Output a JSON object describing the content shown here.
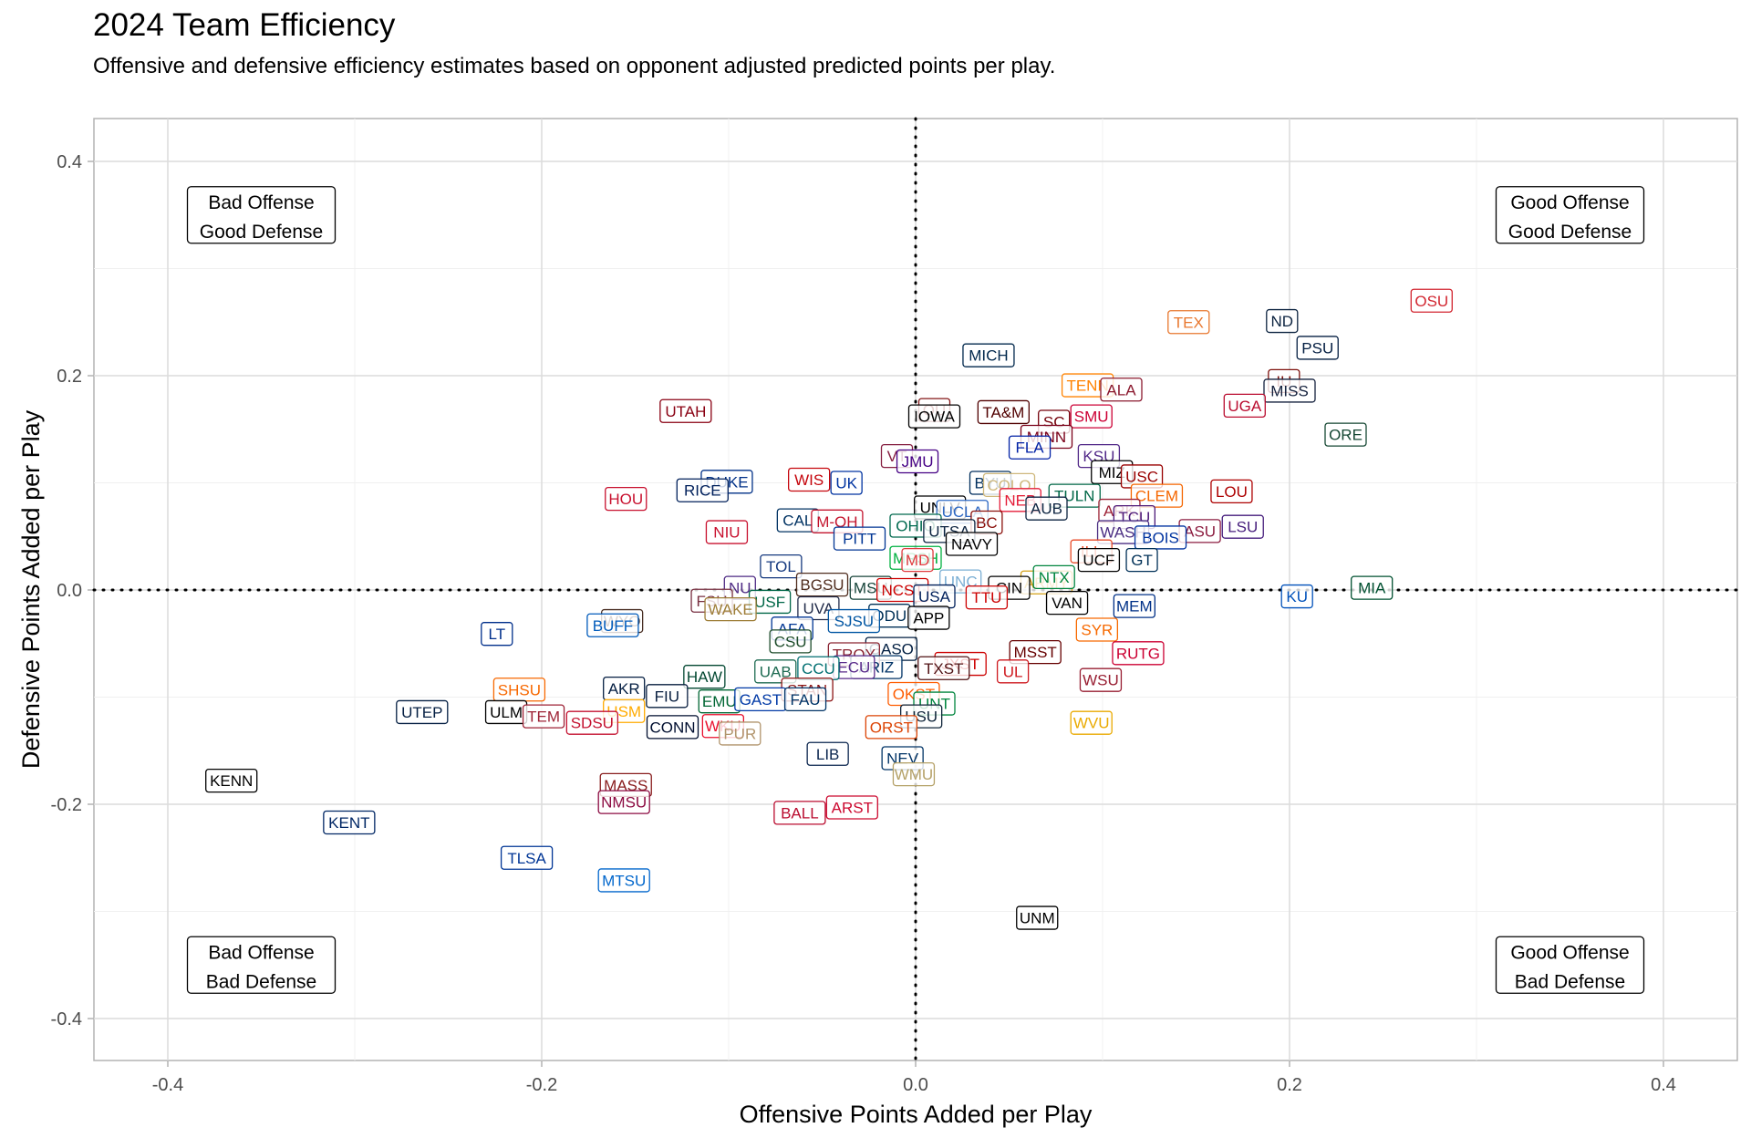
{
  "chart_data": {
    "type": "scatter",
    "title": "2024 Team Efficiency",
    "subtitle": "Offensive and defensive efficiency estimates based on opponent adjusted predicted points per play.",
    "xlabel": "Offensive Points Added per Play",
    "ylabel": "Defensive Points Added per Play",
    "xlim": [
      -0.44,
      0.44
    ],
    "ylim": [
      -0.44,
      0.44
    ],
    "x_ticks": [
      -0.4,
      -0.2,
      0.0,
      0.2,
      0.4
    ],
    "x_tick_labels": [
      "-0.4",
      "-0.2",
      "0.0",
      "0.2",
      "0.4"
    ],
    "y_ticks": [
      -0.4,
      -0.2,
      0.0,
      0.2,
      0.4
    ],
    "y_tick_labels": [
      "-0.4",
      "-0.2",
      "0.0",
      "0.2",
      "0.4"
    ],
    "grid": true,
    "reference_lines": {
      "x": 0.0,
      "y": 0.0,
      "style": "dotted"
    },
    "quadrant_labels": [
      {
        "lines": [
          "Bad Offense",
          "Good Defense"
        ],
        "x": -0.35,
        "y": 0.35
      },
      {
        "lines": [
          "Good Offense",
          "Good Defense"
        ],
        "x": 0.35,
        "y": 0.35
      },
      {
        "lines": [
          "Bad Offense",
          "Bad Defense"
        ],
        "x": -0.35,
        "y": -0.35
      },
      {
        "lines": [
          "Good Offense",
          "Bad Defense"
        ],
        "x": 0.35,
        "y": -0.35
      }
    ],
    "points": [
      {
        "team": "OSU",
        "x": 0.276,
        "y": 0.27,
        "color": "#d22630"
      },
      {
        "team": "TEX",
        "x": 0.146,
        "y": 0.25,
        "color": "#e8772e"
      },
      {
        "team": "ND",
        "x": 0.196,
        "y": 0.251,
        "color": "#0c2340"
      },
      {
        "team": "PSU",
        "x": 0.215,
        "y": 0.226,
        "color": "#041e42"
      },
      {
        "team": "MICH",
        "x": 0.039,
        "y": 0.219,
        "color": "#00274c"
      },
      {
        "team": "TENN",
        "x": 0.092,
        "y": 0.191,
        "color": "#ff8200"
      },
      {
        "team": "ALA",
        "x": 0.11,
        "y": 0.187,
        "color": "#8b1a2f"
      },
      {
        "team": "IU",
        "x": 0.197,
        "y": 0.195,
        "color": "#7d110c"
      },
      {
        "team": "MISS",
        "x": 0.2,
        "y": 0.186,
        "color": "#14213d"
      },
      {
        "team": "UGA",
        "x": 0.176,
        "y": 0.172,
        "color": "#ba0c2f"
      },
      {
        "team": "UTAH",
        "x": -0.123,
        "y": 0.167,
        "color": "#890012"
      },
      {
        "team": "OU",
        "x": 0.01,
        "y": 0.168,
        "color": "#841617"
      },
      {
        "team": "IOWA",
        "x": 0.01,
        "y": 0.162,
        "color": "#000000"
      },
      {
        "team": "TA&M",
        "x": 0.047,
        "y": 0.166,
        "color": "#500000"
      },
      {
        "team": "SMU",
        "x": 0.094,
        "y": 0.162,
        "color": "#cc0035"
      },
      {
        "team": "SC",
        "x": 0.074,
        "y": 0.157,
        "color": "#73000a"
      },
      {
        "team": "MINN",
        "x": 0.07,
        "y": 0.143,
        "color": "#7a0019"
      },
      {
        "team": "ORE",
        "x": 0.23,
        "y": 0.145,
        "color": "#154733"
      },
      {
        "team": "FLA",
        "x": 0.061,
        "y": 0.133,
        "color": "#0021a5"
      },
      {
        "team": "KSU",
        "x": 0.098,
        "y": 0.125,
        "color": "#512888"
      },
      {
        "team": "VT",
        "x": -0.01,
        "y": 0.125,
        "color": "#861f41"
      },
      {
        "team": "JMU",
        "x": 0.001,
        "y": 0.12,
        "color": "#450084"
      },
      {
        "team": "MIZ",
        "x": 0.105,
        "y": 0.11,
        "color": "#000000"
      },
      {
        "team": "USC",
        "x": 0.121,
        "y": 0.106,
        "color": "#990000"
      },
      {
        "team": "DUKE",
        "x": -0.101,
        "y": 0.101,
        "color": "#003087"
      },
      {
        "team": "WIS",
        "x": -0.057,
        "y": 0.103,
        "color": "#c5050c"
      },
      {
        "team": "UK",
        "x": -0.037,
        "y": 0.1,
        "color": "#0033a0"
      },
      {
        "team": "BYU",
        "x": 0.04,
        "y": 0.1,
        "color": "#002e5d"
      },
      {
        "team": "COLO",
        "x": 0.05,
        "y": 0.098,
        "color": "#cfb87c"
      },
      {
        "team": "RICE",
        "x": -0.114,
        "y": 0.093,
        "color": "#00205b"
      },
      {
        "team": "LOU",
        "x": 0.169,
        "y": 0.092,
        "color": "#ad0000"
      },
      {
        "team": "TULN",
        "x": 0.085,
        "y": 0.088,
        "color": "#006747"
      },
      {
        "team": "CLEM",
        "x": 0.129,
        "y": 0.088,
        "color": "#f56600"
      },
      {
        "team": "NEB",
        "x": 0.056,
        "y": 0.084,
        "color": "#e41c38"
      },
      {
        "team": "HOU",
        "x": -0.155,
        "y": 0.085,
        "color": "#c8102e"
      },
      {
        "team": "AUB",
        "x": 0.07,
        "y": 0.076,
        "color": "#0c2340"
      },
      {
        "team": "UNLV",
        "x": 0.013,
        "y": 0.077,
        "color": "#000000"
      },
      {
        "team": "UCLA",
        "x": 0.025,
        "y": 0.073,
        "color": "#2d68c4"
      },
      {
        "team": "ARK",
        "x": 0.109,
        "y": 0.074,
        "color": "#9d2235"
      },
      {
        "team": "TCU",
        "x": 0.117,
        "y": 0.068,
        "color": "#4d1979"
      },
      {
        "team": "CAL",
        "x": -0.063,
        "y": 0.065,
        "color": "#003262"
      },
      {
        "team": "M-OH",
        "x": -0.042,
        "y": 0.064,
        "color": "#c3142d"
      },
      {
        "team": "BC",
        "x": 0.038,
        "y": 0.063,
        "color": "#8a100b"
      },
      {
        "team": "OHIO",
        "x": 0.0,
        "y": 0.06,
        "color": "#00694e"
      },
      {
        "team": "LSU",
        "x": 0.175,
        "y": 0.059,
        "color": "#461d7c"
      },
      {
        "team": "ASU",
        "x": 0.152,
        "y": 0.055,
        "color": "#8c1d40"
      },
      {
        "team": "UTSA",
        "x": 0.018,
        "y": 0.055,
        "color": "#0c2340"
      },
      {
        "team": "NIU",
        "x": -0.101,
        "y": 0.054,
        "color": "#c8102e"
      },
      {
        "team": "WASH",
        "x": 0.111,
        "y": 0.054,
        "color": "#4b2e83"
      },
      {
        "team": "BOIS",
        "x": 0.131,
        "y": 0.049,
        "color": "#0033a0"
      },
      {
        "team": "PITT",
        "x": -0.03,
        "y": 0.048,
        "color": "#003594"
      },
      {
        "team": "NAVY",
        "x": 0.03,
        "y": 0.043,
        "color": "#000000"
      },
      {
        "team": "ILL",
        "x": 0.094,
        "y": 0.036,
        "color": "#e84a27"
      },
      {
        "team": "MRSH",
        "x": 0.0,
        "y": 0.03,
        "color": "#00b140"
      },
      {
        "team": "UCF",
        "x": 0.098,
        "y": 0.028,
        "color": "#000000"
      },
      {
        "team": "MD",
        "x": 0.001,
        "y": 0.028,
        "color": "#e03a3e"
      },
      {
        "team": "GT",
        "x": 0.121,
        "y": 0.028,
        "color": "#003057"
      },
      {
        "team": "TOL",
        "x": -0.072,
        "y": 0.022,
        "color": "#15397f"
      },
      {
        "team": "UNC",
        "x": 0.024,
        "y": 0.008,
        "color": "#7bafd4"
      },
      {
        "team": "ARMY",
        "x": 0.07,
        "y": 0.007,
        "color": "#d4a017"
      },
      {
        "team": "NTX",
        "x": 0.074,
        "y": 0.012,
        "color": "#00853e"
      },
      {
        "team": "BGSU",
        "x": -0.05,
        "y": 0.005,
        "color": "#4f2c1d"
      },
      {
        "team": "MIA",
        "x": 0.244,
        "y": 0.002,
        "color": "#005030"
      },
      {
        "team": "CIN",
        "x": 0.05,
        "y": 0.002,
        "color": "#000000"
      },
      {
        "team": "NU",
        "x": -0.094,
        "y": 0.002,
        "color": "#4e2a84"
      },
      {
        "team": "MSU",
        "x": -0.024,
        "y": 0.002,
        "color": "#18453b"
      },
      {
        "team": "NCST",
        "x": -0.007,
        "y": 0.0,
        "color": "#cc0000"
      },
      {
        "team": "USA",
        "x": 0.01,
        "y": -0.006,
        "color": "#00205b"
      },
      {
        "team": "TTU",
        "x": 0.038,
        "y": -0.007,
        "color": "#cc0000"
      },
      {
        "team": "KU",
        "x": 0.204,
        "y": -0.006,
        "color": "#0051ba"
      },
      {
        "team": "FSU",
        "x": -0.109,
        "y": -0.01,
        "color": "#782f40"
      },
      {
        "team": "USF",
        "x": -0.078,
        "y": -0.011,
        "color": "#006747"
      },
      {
        "team": "VAN",
        "x": 0.081,
        "y": -0.012,
        "color": "#000000"
      },
      {
        "team": "MEM",
        "x": 0.117,
        "y": -0.015,
        "color": "#003087"
      },
      {
        "team": "WAKE",
        "x": -0.099,
        "y": -0.018,
        "color": "#9e7e38"
      },
      {
        "team": "UVA",
        "x": -0.052,
        "y": -0.017,
        "color": "#232d4b"
      },
      {
        "team": "ODU",
        "x": -0.014,
        "y": -0.024,
        "color": "#003057"
      },
      {
        "team": "APP",
        "x": 0.007,
        "y": -0.026,
        "color": "#000000"
      },
      {
        "team": "SJSU",
        "x": -0.033,
        "y": -0.029,
        "color": "#0055a2"
      },
      {
        "team": "WYO",
        "x": -0.157,
        "y": -0.029,
        "color": "#492f24"
      },
      {
        "team": "BUFF",
        "x": -0.162,
        "y": -0.033,
        "color": "#005bbb"
      },
      {
        "team": "AFA",
        "x": -0.066,
        "y": -0.036,
        "color": "#003594"
      },
      {
        "team": "SYR",
        "x": 0.097,
        "y": -0.037,
        "color": "#f76900"
      },
      {
        "team": "LT",
        "x": -0.224,
        "y": -0.041,
        "color": "#002f8b"
      },
      {
        "team": "CSU",
        "x": -0.067,
        "y": -0.048,
        "color": "#1e4d2b"
      },
      {
        "team": "GASO",
        "x": -0.013,
        "y": -0.055,
        "color": "#011e41"
      },
      {
        "team": "MSST",
        "x": 0.064,
        "y": -0.058,
        "color": "#660000"
      },
      {
        "team": "TROY",
        "x": -0.033,
        "y": -0.06,
        "color": "#8a2432"
      },
      {
        "team": "RUTG",
        "x": 0.119,
        "y": -0.059,
        "color": "#cc0033"
      },
      {
        "team": "JXST",
        "x": 0.024,
        "y": -0.069,
        "color": "#cc0000"
      },
      {
        "team": "ARIZ",
        "x": -0.021,
        "y": -0.072,
        "color": "#003366"
      },
      {
        "team": "ECU",
        "x": -0.033,
        "y": -0.072,
        "color": "#592a8a"
      },
      {
        "team": "TXST",
        "x": 0.015,
        "y": -0.073,
        "color": "#501214"
      },
      {
        "team": "CCU",
        "x": -0.052,
        "y": -0.073,
        "color": "#006f71"
      },
      {
        "team": "UAB",
        "x": -0.075,
        "y": -0.076,
        "color": "#1e6b52"
      },
      {
        "team": "UL",
        "x": 0.052,
        "y": -0.076,
        "color": "#ce181e"
      },
      {
        "team": "HAW",
        "x": -0.113,
        "y": -0.081,
        "color": "#024731"
      },
      {
        "team": "WSU",
        "x": 0.099,
        "y": -0.084,
        "color": "#981e32"
      },
      {
        "team": "SHSU",
        "x": -0.212,
        "y": -0.093,
        "color": "#f76800"
      },
      {
        "team": "AKR",
        "x": -0.156,
        "y": -0.092,
        "color": "#041e42"
      },
      {
        "team": "STAN",
        "x": -0.058,
        "y": -0.093,
        "color": "#8c1515"
      },
      {
        "team": "FIU",
        "x": -0.133,
        "y": -0.099,
        "color": "#081e3f"
      },
      {
        "team": "OKST",
        "x": -0.001,
        "y": -0.097,
        "color": "#fe5c00"
      },
      {
        "team": "EMU",
        "x": -0.105,
        "y": -0.104,
        "color": "#006633"
      },
      {
        "team": "GAST",
        "x": -0.083,
        "y": -0.102,
        "color": "#0039a6"
      },
      {
        "team": "FAU",
        "x": -0.059,
        "y": -0.102,
        "color": "#003366"
      },
      {
        "team": "UNT",
        "x": 0.01,
        "y": -0.106,
        "color": "#00853e"
      },
      {
        "team": "UTEP",
        "x": -0.264,
        "y": -0.114,
        "color": "#041e42"
      },
      {
        "team": "ULM",
        "x": -0.219,
        "y": -0.114,
        "color": "#000000"
      },
      {
        "team": "USM",
        "x": -0.156,
        "y": -0.113,
        "color": "#ffab00"
      },
      {
        "team": "TEM",
        "x": -0.199,
        "y": -0.118,
        "color": "#9d2235"
      },
      {
        "team": "USU",
        "x": 0.003,
        "y": -0.118,
        "color": "#0f2439"
      },
      {
        "team": "SDSU",
        "x": -0.173,
        "y": -0.124,
        "color": "#c41230"
      },
      {
        "team": "WVU",
        "x": 0.094,
        "y": -0.124,
        "color": "#eaaa00"
      },
      {
        "team": "CONN",
        "x": -0.13,
        "y": -0.128,
        "color": "#000e2f"
      },
      {
        "team": "WKU",
        "x": -0.103,
        "y": -0.127,
        "color": "#e90f2d"
      },
      {
        "team": "ORST",
        "x": -0.013,
        "y": -0.128,
        "color": "#dc4405"
      },
      {
        "team": "PUR",
        "x": -0.094,
        "y": -0.134,
        "color": "#b1946c"
      },
      {
        "team": "LIB",
        "x": -0.047,
        "y": -0.153,
        "color": "#0a254e"
      },
      {
        "team": "NEV",
        "x": -0.007,
        "y": -0.157,
        "color": "#003366"
      },
      {
        "team": "WMU",
        "x": -0.001,
        "y": -0.172,
        "color": "#b5a167"
      },
      {
        "team": "KENN",
        "x": -0.366,
        "y": -0.178,
        "color": "#000000"
      },
      {
        "team": "MASS",
        "x": -0.155,
        "y": -0.182,
        "color": "#881c1c"
      },
      {
        "team": "NMSU",
        "x": -0.156,
        "y": -0.198,
        "color": "#8c0b42"
      },
      {
        "team": "ARST",
        "x": -0.034,
        "y": -0.203,
        "color": "#cc092f"
      },
      {
        "team": "BALL",
        "x": -0.062,
        "y": -0.208,
        "color": "#ba0c2f"
      },
      {
        "team": "KENT",
        "x": -0.303,
        "y": -0.217,
        "color": "#002664"
      },
      {
        "team": "TLSA",
        "x": -0.208,
        "y": -0.25,
        "color": "#003595"
      },
      {
        "team": "MTSU",
        "x": -0.156,
        "y": -0.271,
        "color": "#0066cc"
      },
      {
        "team": "UNM",
        "x": 0.065,
        "y": -0.306,
        "color": "#000000"
      }
    ]
  }
}
